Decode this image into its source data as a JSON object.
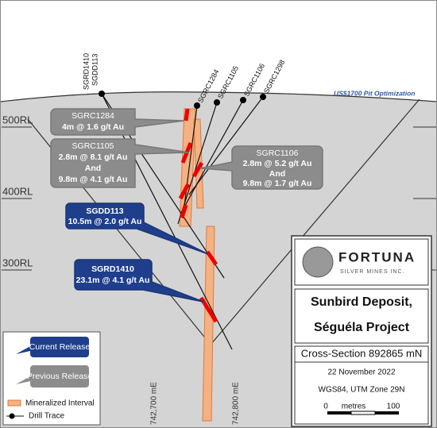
{
  "rl_labels": [
    "500RL",
    "400RL",
    "300RL"
  ],
  "holes": [
    "SGDD113",
    "SGRD1410",
    "SGRC1284",
    "SGRC1105",
    "SGRC1106",
    "SGRC1298"
  ],
  "pit_label": "US$1700 Pit Optimization",
  "callouts": [
    {
      "title": "SGRC1284",
      "lines": [
        "4m @ 1.6 g/t Au"
      ]
    },
    {
      "title": "SGRC1105",
      "lines": [
        "2.8m @ 8.1 g/t Au",
        "And",
        "9.8m @ 4.1 g/t Au"
      ]
    },
    {
      "title": "SGRC1106",
      "lines": [
        "2.8m @ 5.2 g/t Au",
        "And",
        "9.8m @ 1.7 g/t Au"
      ]
    },
    {
      "title": "SGDD113",
      "lines": [
        "10.5m @ 2.0 g/t Au"
      ]
    },
    {
      "title": "SGRD1410",
      "lines": [
        "23.1m @ 4.1 g/t Au"
      ]
    }
  ],
  "easting_labels": [
    "742,700 mE",
    "742,800 mE"
  ],
  "legend": {
    "current": "Current Release",
    "previous": "Previous Release",
    "mineralized": "Mineralized Interval",
    "drill": "Drill Trace"
  },
  "panel": {
    "logo_name": "FORTUNA",
    "logo_sub": "SILVER MINES INC.",
    "title1": "Sunbird Deposit,",
    "title2": "Séguéla Project",
    "section": "Cross-Section 892865 mN",
    "date": "22 November 2022",
    "projection": "WGS84, UTM Zone 29N",
    "scale_start": "0",
    "scale_unit": "metres",
    "scale_end": "100"
  }
}
